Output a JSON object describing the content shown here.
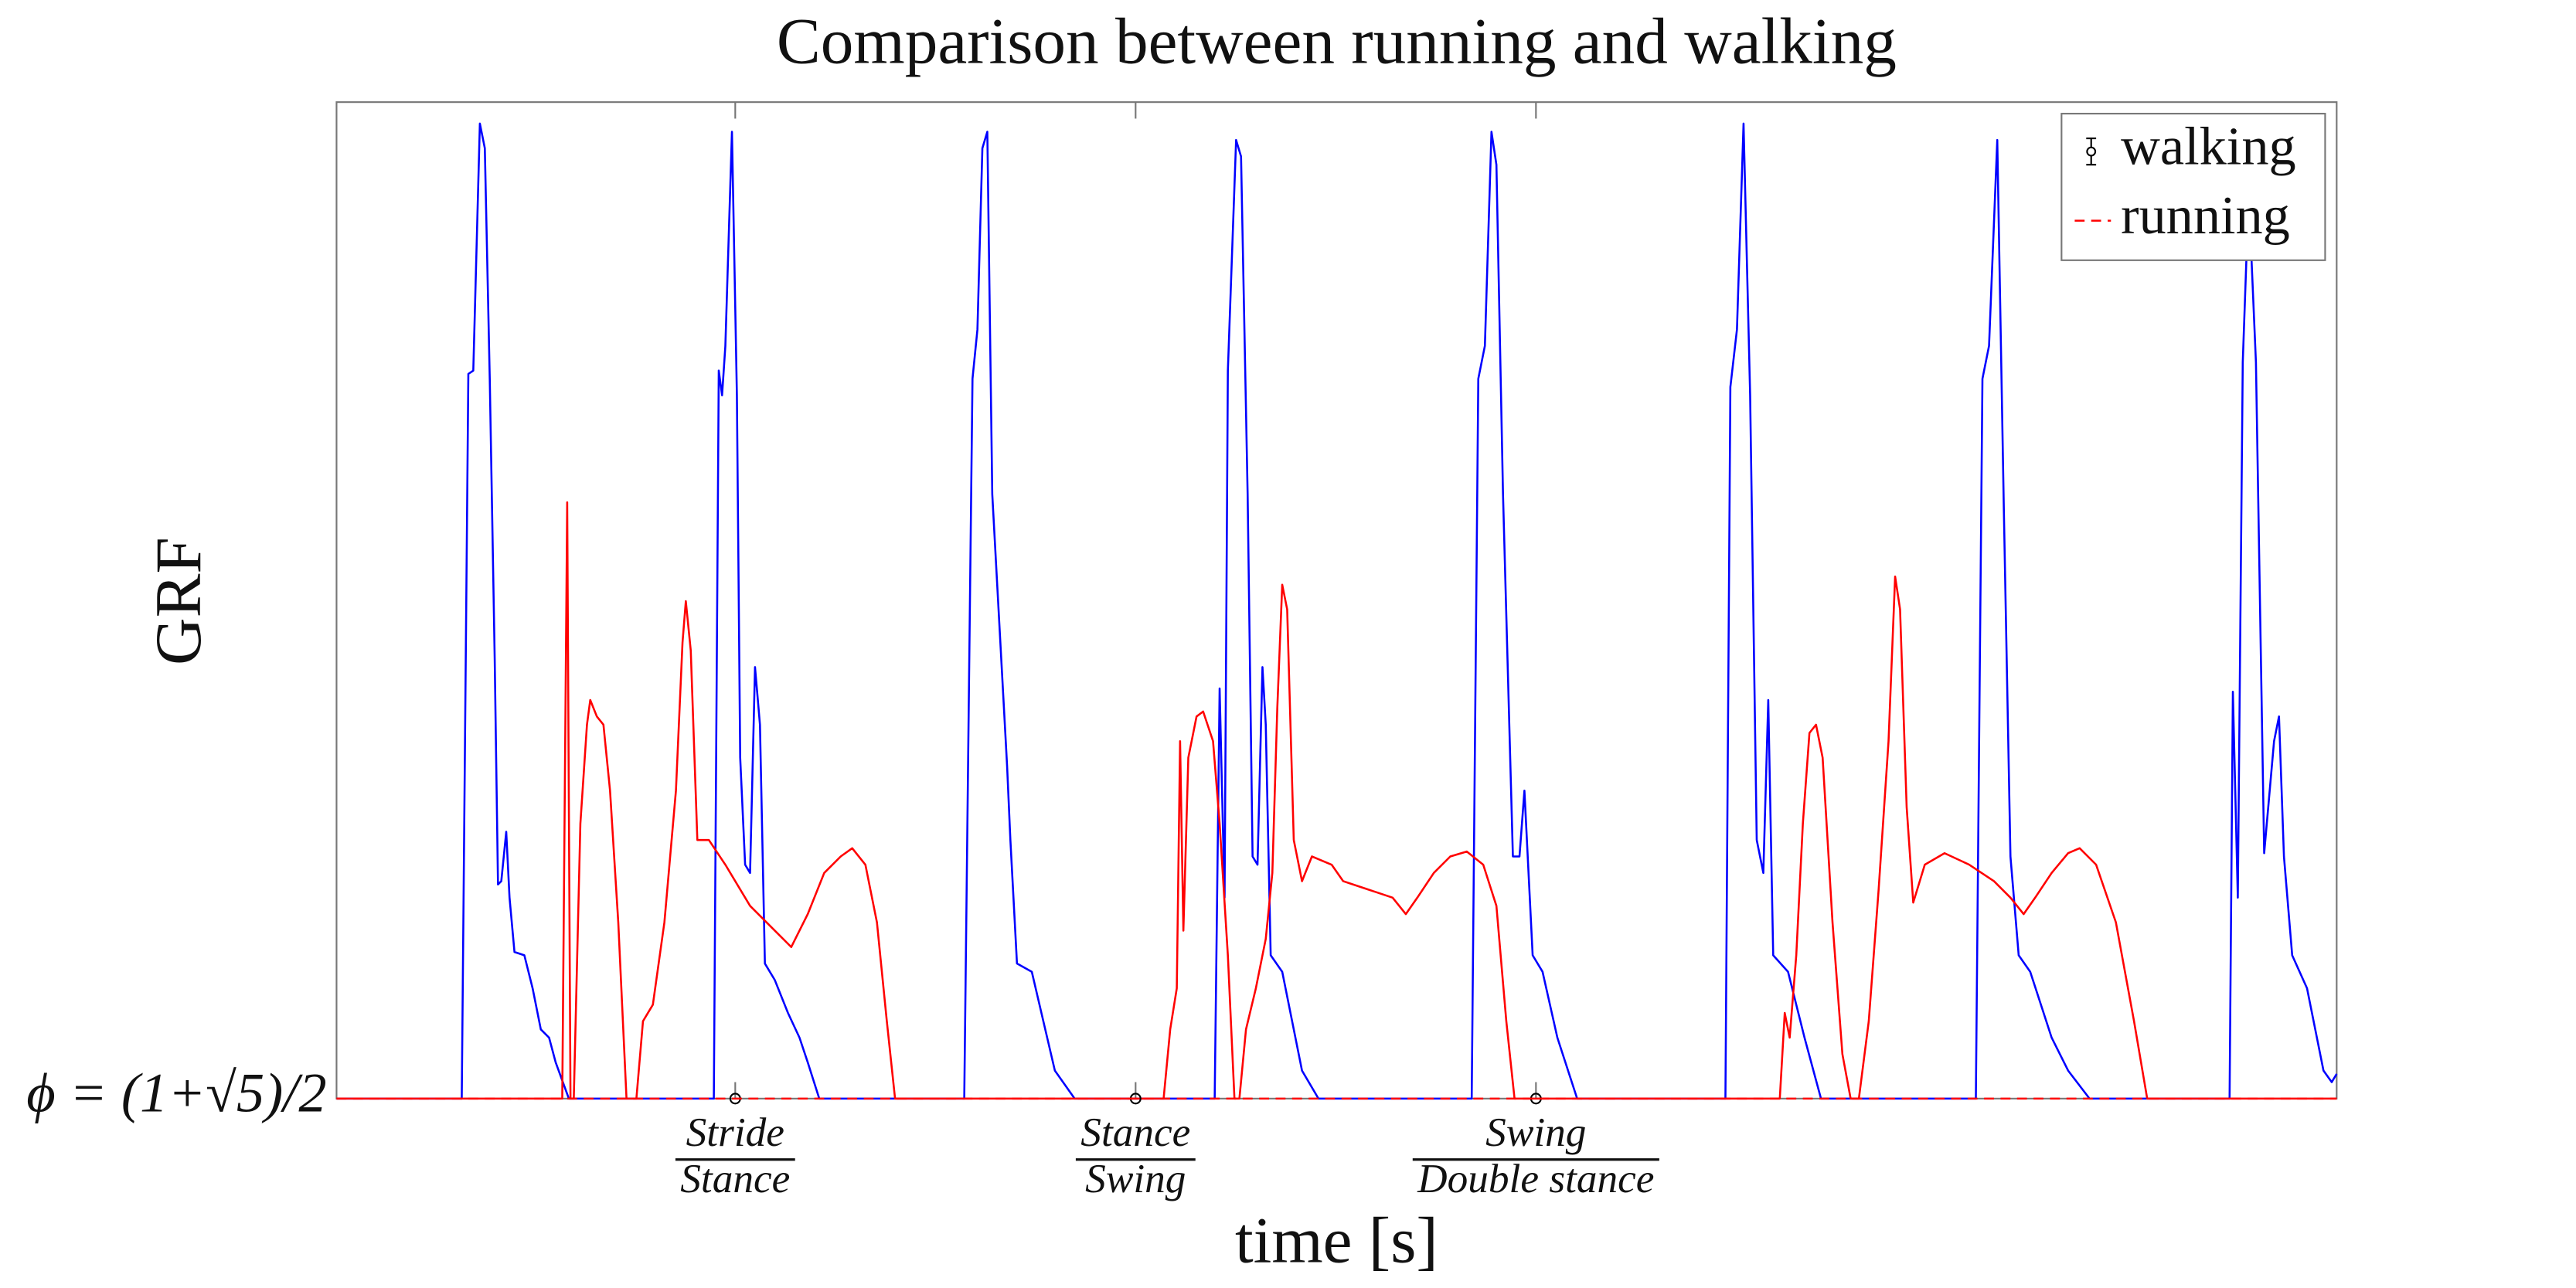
{
  "chart_data": {
    "type": "line",
    "title": "Comparison between running and walking",
    "xlabel": "time [s]",
    "ylabel": "GRF",
    "xlim": [
      0,
      1214
    ],
    "ylim": [
      0,
      605
    ],
    "xticks": [
      {
        "value": 242,
        "label": [
          "Stride",
          "Stance"
        ]
      },
      {
        "value": 485,
        "label": [
          "Stance",
          "Swing"
        ]
      },
      {
        "value": 728,
        "label": [
          "Swing",
          "Double stance"
        ]
      }
    ],
    "yticks": [
      {
        "value": 0,
        "label": "ϕ = (1+√5)/2"
      }
    ],
    "grid": false,
    "legend": "northeast",
    "series": [
      {
        "color": "#0000ff",
        "x": [
          0,
          76,
          80,
          83,
          87,
          90,
          93,
          96,
          98,
          100,
          103,
          105,
          108,
          114,
          119,
          124,
          129,
          133,
          141,
          229,
          232,
          234,
          236,
          240,
          243,
          245,
          248,
          251,
          254,
          257,
          260,
          266,
          274,
          281,
          286,
          293,
          381,
          386,
          389,
          392,
          395,
          398,
          407,
          409,
          413,
          422,
          436,
          448,
          533,
          536,
          539,
          541,
          546,
          549,
          553,
          556,
          559,
          562,
          564,
          567,
          574,
          586,
          596,
          689,
          693,
          697,
          701,
          704,
          708,
          714,
          718,
          721,
          726,
          732,
          741,
          753,
          843,
          846,
          850,
          854,
          858,
          862,
          866,
          869,
          872,
          881,
          891,
          901,
          995,
          999,
          1003,
          1008,
          1012,
          1016,
          1021,
          1028,
          1041,
          1051,
          1064,
          1149,
          1151,
          1154,
          1157,
          1160,
          1162,
          1165,
          1170,
          1176,
          1179,
          1182,
          1187,
          1196,
          1206,
          1211,
          1214
        ],
        "values": [
          0,
          0,
          440,
          442,
          592,
          577,
          437,
          267,
          130,
          132,
          162,
          122,
          89,
          87,
          67,
          42,
          37,
          22,
          0,
          0,
          442,
          427,
          457,
          587,
          427,
          207,
          142,
          137,
          262,
          227,
          82,
          72,
          52,
          37,
          22,
          0,
          0,
          437,
          467,
          577,
          587,
          367,
          202,
          157,
          82,
          77,
          17,
          0,
          0,
          249,
          122,
          442,
          582,
          572,
          367,
          147,
          142,
          262,
          227,
          87,
          77,
          17,
          0,
          0,
          437,
          457,
          587,
          567,
          367,
          147,
          147,
          187,
          87,
          77,
          37,
          0,
          0,
          432,
          467,
          592,
          427,
          157,
          137,
          242,
          87,
          77,
          37,
          0,
          0,
          437,
          457,
          582,
          357,
          147,
          87,
          77,
          37,
          17,
          0,
          0,
          247,
          122,
          447,
          532,
          517,
          447,
          149,
          217,
          232,
          147,
          87,
          67,
          17,
          10,
          15
        ]
      },
      {
        "color": "#ff0000",
        "x": [
          0,
          137,
          140,
          142,
          144,
          148,
          152,
          154,
          158,
          162,
          166,
          171,
          176,
          182,
          186,
          192,
          199,
          206,
          210,
          212,
          215,
          219,
          226,
          236,
          251,
          266,
          276,
          286,
          296,
          306,
          313,
          321,
          328,
          334,
          339,
          502,
          506,
          510,
          512,
          514,
          517,
          522,
          526,
          532,
          536,
          541,
          545,
          548,
          552,
          558,
          564,
          568,
          571,
          574,
          577,
          581,
          586,
          592,
          604,
          611,
          626,
          641,
          649,
          656,
          666,
          676,
          686,
          696,
          704,
          710,
          715,
          876,
          879,
          882,
          886,
          890,
          894,
          898,
          902,
          908,
          914,
          919,
          924,
          930,
          936,
          942,
          946,
          949,
          953,
          957,
          964,
          976,
          991,
          1006,
          1016,
          1024,
          1031,
          1041,
          1051,
          1058,
          1068,
          1080,
          1091,
          1099,
          1214
        ],
        "values": [
          0,
          0,
          362,
          0,
          0,
          167,
          227,
          242,
          232,
          227,
          187,
          107,
          0,
          0,
          47,
          57,
          107,
          187,
          277,
          302,
          272,
          157,
          157,
          142,
          117,
          102,
          92,
          112,
          137,
          147,
          152,
          142,
          107,
          47,
          0,
          0,
          42,
          67,
          217,
          102,
          207,
          232,
          235,
          217,
          167,
          87,
          0,
          0,
          42,
          67,
          97,
          137,
          237,
          312,
          297,
          157,
          132,
          147,
          142,
          132,
          127,
          122,
          112,
          122,
          137,
          147,
          150,
          142,
          117,
          47,
          0,
          0,
          52,
          37,
          87,
          167,
          222,
          227,
          207,
          107,
          27,
          0,
          0,
          47,
          127,
          217,
          317,
          297,
          177,
          119,
          142,
          149,
          142,
          132,
          122,
          112,
          122,
          137,
          149,
          152,
          142,
          107,
          47,
          0,
          0
        ]
      },
      {
        "name": "walking",
        "color": "#000000",
        "style": "errorbar",
        "x": [
          242,
          485,
          728
        ],
        "values": [
          0,
          0,
          0
        ]
      },
      {
        "name": "running",
        "color": "#ff0000",
        "style": "dashed",
        "x": [
          0,
          1214
        ],
        "values": [
          0,
          0
        ]
      }
    ]
  }
}
